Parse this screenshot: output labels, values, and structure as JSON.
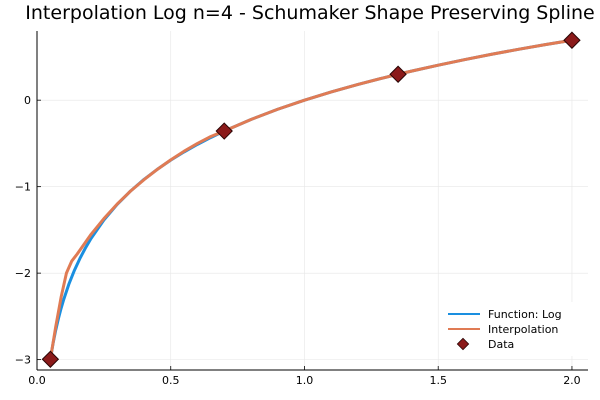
{
  "chart_data": {
    "type": "line",
    "title": "Interpolation Log n=4 - Schumaker Shape Preserving Spline",
    "xlabel": "",
    "ylabel": "",
    "xlim": [
      0.0,
      2.06
    ],
    "ylim": [
      -3.12,
      0.8
    ],
    "xticks": [
      0.0,
      0.5,
      1.0,
      1.5,
      2.0
    ],
    "xtick_labels": [
      "0.0",
      "0.5",
      "1.0",
      "1.5",
      "2.0"
    ],
    "yticks": [
      -3,
      -2,
      -1,
      0
    ],
    "ytick_labels": [
      "−3",
      "−2",
      "−1",
      "0"
    ],
    "grid": true,
    "legend_position": "bottom-right",
    "colors": {
      "function": "#1a8fe0",
      "interpolation": "#e07b54",
      "data_fill": "#8b1a1a",
      "data_edge": "#2a0505"
    },
    "series": [
      {
        "name": "Function: Log",
        "kind": "line",
        "x": [
          0.05,
          0.06,
          0.07,
          0.08,
          0.09,
          0.1,
          0.12,
          0.14,
          0.16,
          0.18,
          0.2,
          0.25,
          0.3,
          0.35,
          0.4,
          0.45,
          0.5,
          0.55,
          0.6,
          0.65,
          0.7,
          0.8,
          0.9,
          1.0,
          1.1,
          1.2,
          1.3,
          1.35,
          1.4,
          1.5,
          1.6,
          1.7,
          1.8,
          1.9,
          2.0
        ],
        "y": [
          -2.996,
          -2.813,
          -2.659,
          -2.526,
          -2.408,
          -2.303,
          -2.12,
          -1.966,
          -1.833,
          -1.715,
          -1.609,
          -1.386,
          -1.204,
          -1.05,
          -0.916,
          -0.799,
          -0.693,
          -0.598,
          -0.511,
          -0.431,
          -0.357,
          -0.223,
          -0.105,
          0.0,
          0.095,
          0.182,
          0.262,
          0.3,
          0.336,
          0.405,
          0.47,
          0.531,
          0.588,
          0.642,
          0.693
        ]
      },
      {
        "name": "Interpolation",
        "kind": "line",
        "x": [
          0.05,
          0.07,
          0.09,
          0.11,
          0.13,
          0.15,
          0.2,
          0.25,
          0.3,
          0.35,
          0.4,
          0.45,
          0.5,
          0.55,
          0.6,
          0.65,
          0.7,
          0.8,
          0.9,
          1.0,
          1.1,
          1.2,
          1.3,
          1.35,
          1.4,
          1.5,
          1.6,
          1.7,
          1.8,
          1.9,
          2.0
        ],
        "y": [
          -2.996,
          -2.62,
          -2.28,
          -2.0,
          -1.86,
          -1.78,
          -1.56,
          -1.37,
          -1.2,
          -1.05,
          -0.92,
          -0.8,
          -0.69,
          -0.59,
          -0.5,
          -0.42,
          -0.357,
          -0.223,
          -0.105,
          0.0,
          0.095,
          0.182,
          0.262,
          0.3,
          0.336,
          0.405,
          0.47,
          0.531,
          0.588,
          0.642,
          0.693
        ]
      },
      {
        "name": "Data",
        "kind": "scatter",
        "x": [
          0.05,
          0.7,
          1.35,
          2.0
        ],
        "y": [
          -2.996,
          -0.357,
          0.3,
          0.693
        ]
      }
    ]
  }
}
